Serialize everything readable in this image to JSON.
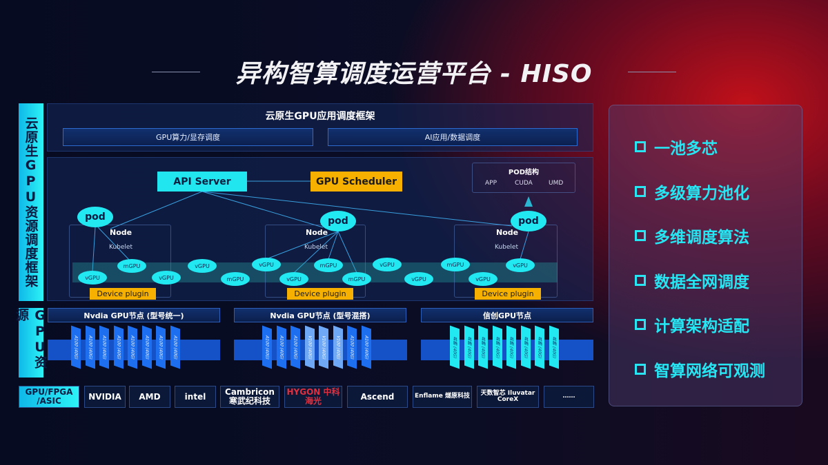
{
  "title": "异构智算调度运营平台 - HISO",
  "left_labels": {
    "framework": "云原生GPU资源调度框架",
    "resources": "GPU资源",
    "vendors": "GPU/FPGA /ASIC"
  },
  "app_framework": {
    "title": "云原生GPU应用调度框架",
    "buttons": [
      "GPU算力/显存调度",
      "AI应用/数据调度"
    ]
  },
  "api_server": "API Server",
  "gpu_scheduler": "GPU Scheduler",
  "pod_structure": {
    "title": "POD结构",
    "items": [
      "APP",
      "CUDA",
      "UMD"
    ]
  },
  "nodes": [
    {
      "label": "Node",
      "kubelet": "Kubelet",
      "pod": "pod",
      "plugin": "Device plugin"
    },
    {
      "label": "Node",
      "kubelet": "Kubelet",
      "pod": "pod",
      "plugin": "Device plugin"
    },
    {
      "label": "Node",
      "kubelet": "Kubelet",
      "pod": "pod",
      "plugin": "Device plugin"
    }
  ],
  "virtual_gpus": [
    "vGPU",
    "mGPU",
    "vGPU",
    "vGPU",
    "mGPU",
    "vGPU",
    "vGPU",
    "mGPU",
    "mGPU",
    "vGPU",
    "vGPU",
    "mGPU",
    "vGPU",
    "vGPU"
  ],
  "gpu_nodes": [
    {
      "title": "Nvdia GPU节点 (型号统一)",
      "cards": [
        "A100 (40G)",
        "A100 (40G)",
        "A100 (40G)",
        "A100 (40G)",
        "A100 (40G)",
        "A100 (40G)",
        "A100 (40G)",
        "A100 (40G)"
      ]
    },
    {
      "title": "Nvdia GPU节点 (型号混搭)",
      "cards": [
        "A100 (40G)",
        "A100 (40G)",
        "A100 (40G)",
        "V100 (40G)",
        "V100 (40G)",
        "V100 (40G)",
        "A100 (40G)",
        "A100 (40G)"
      ]
    },
    {
      "title": "信创GPU节点",
      "cards": [
        "昇腾 (40G)",
        "昇腾 (40G)",
        "昇腾 (40G)",
        "昇腾 (40G)",
        "昇腾 (40G)",
        "昇腾 (40G)",
        "昇腾 (40G)",
        "昇腾 (40G)"
      ]
    }
  ],
  "vendors": [
    "NVIDIA",
    "AMD",
    "intel",
    "Cambricon 寒武纪科技",
    "HYGON 中科海光",
    "Ascend",
    "Enflame 燧原科技",
    "天数智芯 Iluvatar CoreX",
    "……"
  ],
  "features": [
    "一池多芯",
    "多级算力池化",
    "多维调度算法",
    "数据全网调度",
    "计算架构适配",
    "智算网络可观测"
  ],
  "colors": {
    "cyan": "#22e8f2",
    "orange": "#f5b000",
    "blue": "#1552c8",
    "red_glow": "#c0101a"
  }
}
